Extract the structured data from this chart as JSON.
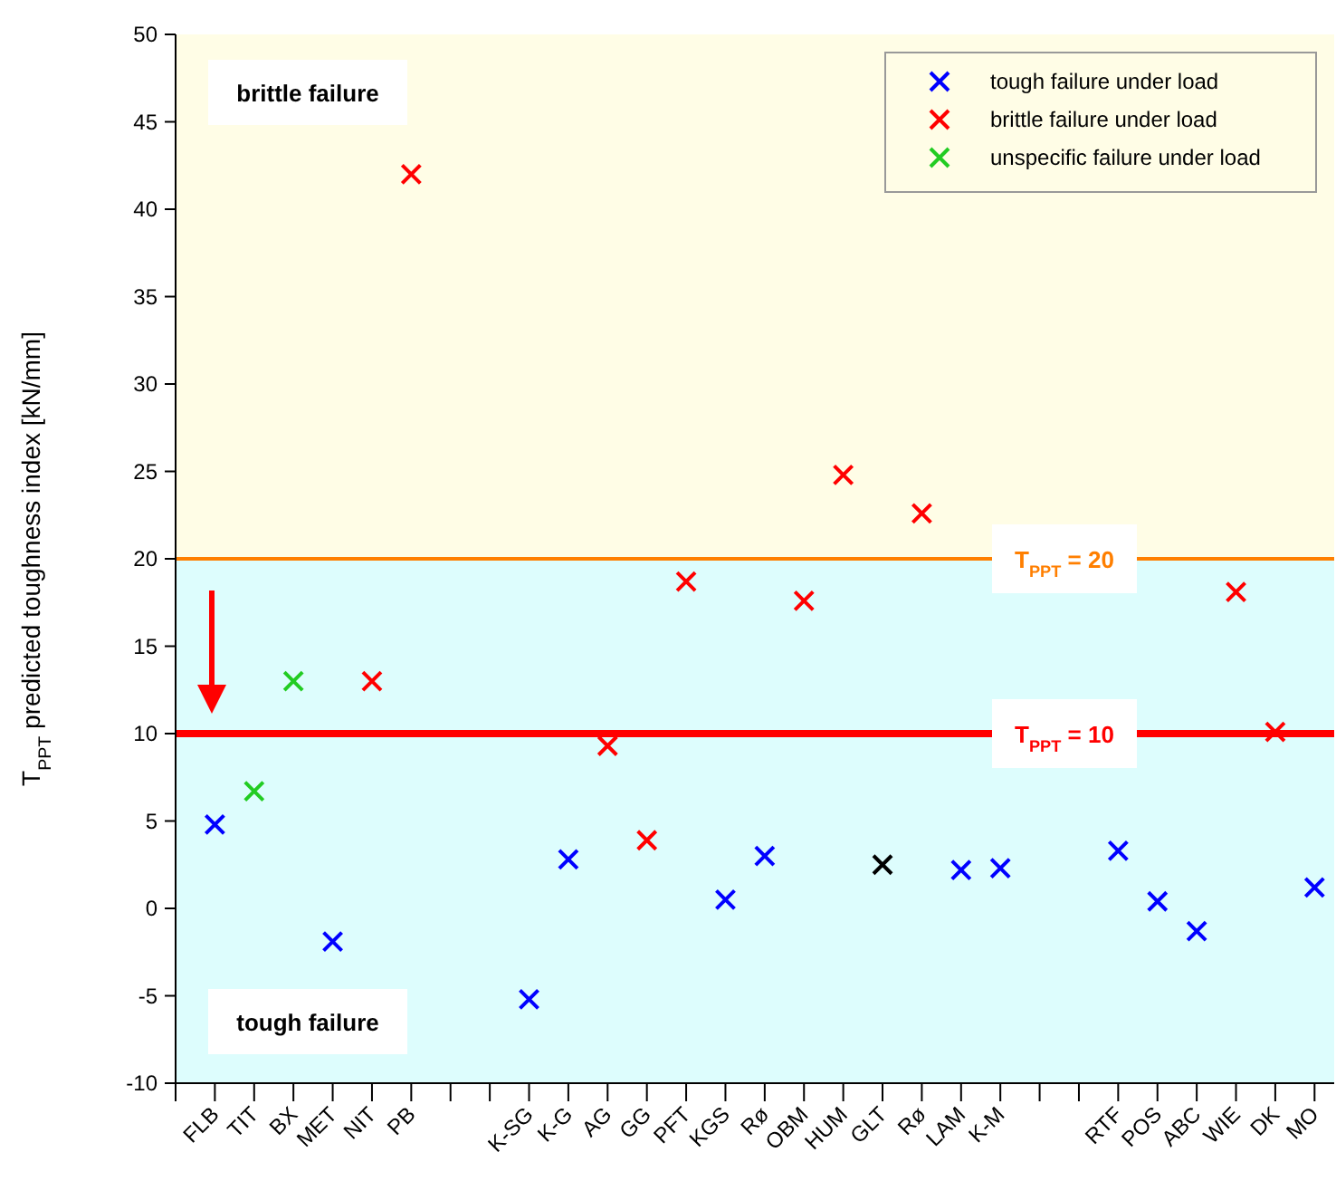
{
  "chart_data": {
    "type": "scatter",
    "ylabel": "T$_{PPT}$ predicted toughness index [kN/mm]",
    "categories": [
      null,
      "FLB",
      "TIT",
      "BX",
      "MET",
      "NIT",
      "PB",
      null,
      null,
      "K-SG",
      "K-G",
      "AG",
      "GG",
      "PFT",
      "KGS",
      "Rø",
      "OBM",
      "HUM",
      "GLT",
      "Rø",
      "LAM",
      "K-M",
      null,
      null,
      "RTF",
      "POS",
      "ABC",
      "WIE",
      "DK",
      "MO"
    ],
    "series": [
      {
        "name": "tough failure under load",
        "color": "#0000ff",
        "values": [
          null,
          4.8,
          null,
          null,
          -1.9,
          null,
          null,
          null,
          null,
          -5.2,
          2.8,
          null,
          null,
          null,
          0.5,
          3.0,
          null,
          null,
          null,
          null,
          2.2,
          2.3,
          null,
          null,
          3.3,
          0.4,
          -1.3,
          null,
          null,
          1.2
        ]
      },
      {
        "name": "brittle failure under load",
        "color": "#ff0000",
        "values": [
          null,
          null,
          null,
          null,
          null,
          13.0,
          42.0,
          null,
          null,
          null,
          null,
          9.3,
          3.9,
          18.7,
          null,
          null,
          17.6,
          24.8,
          null,
          22.6,
          null,
          null,
          null,
          null,
          null,
          null,
          null,
          18.1,
          10.1,
          null
        ]
      },
      {
        "name": "unspecific failure under load",
        "color": "#22cc22",
        "values": [
          null,
          null,
          6.7,
          13.0,
          null,
          null,
          null,
          null,
          null,
          null,
          null,
          null,
          null,
          null,
          null,
          null,
          null,
          null,
          null,
          null,
          null,
          null,
          null,
          null,
          null,
          null,
          null,
          null,
          null,
          null
        ]
      },
      {
        "color": "#000000",
        "values": [
          null,
          null,
          null,
          null,
          null,
          null,
          null,
          null,
          null,
          null,
          null,
          null,
          null,
          null,
          null,
          null,
          null,
          null,
          2.5,
          null,
          null,
          null,
          null,
          null,
          null,
          null,
          null,
          null,
          null,
          null
        ]
      }
    ],
    "ylim": [
      -10,
      50
    ],
    "yticks": [
      -10,
      -5,
      0,
      5,
      10,
      15,
      20,
      25,
      30,
      35,
      40,
      45,
      50
    ],
    "bands": [
      {
        "axis": "y",
        "from": 20,
        "to": 50,
        "label": "brittle failure",
        "color": "#fffde6"
      },
      {
        "axis": "y",
        "from": -10,
        "to": 20,
        "label": "tough failure",
        "color": "#ddfdfd"
      }
    ],
    "ref_lines": [
      {
        "axis": "y",
        "value": 20,
        "label": "T$_{PPT}$ = 20",
        "color": "#ff7f00"
      },
      {
        "axis": "y",
        "value": 10,
        "label": "T$_{PPT}$ = 10",
        "color": "#ff0000"
      }
    ],
    "grid": false,
    "legend": "top right",
    "marker": "cross"
  }
}
